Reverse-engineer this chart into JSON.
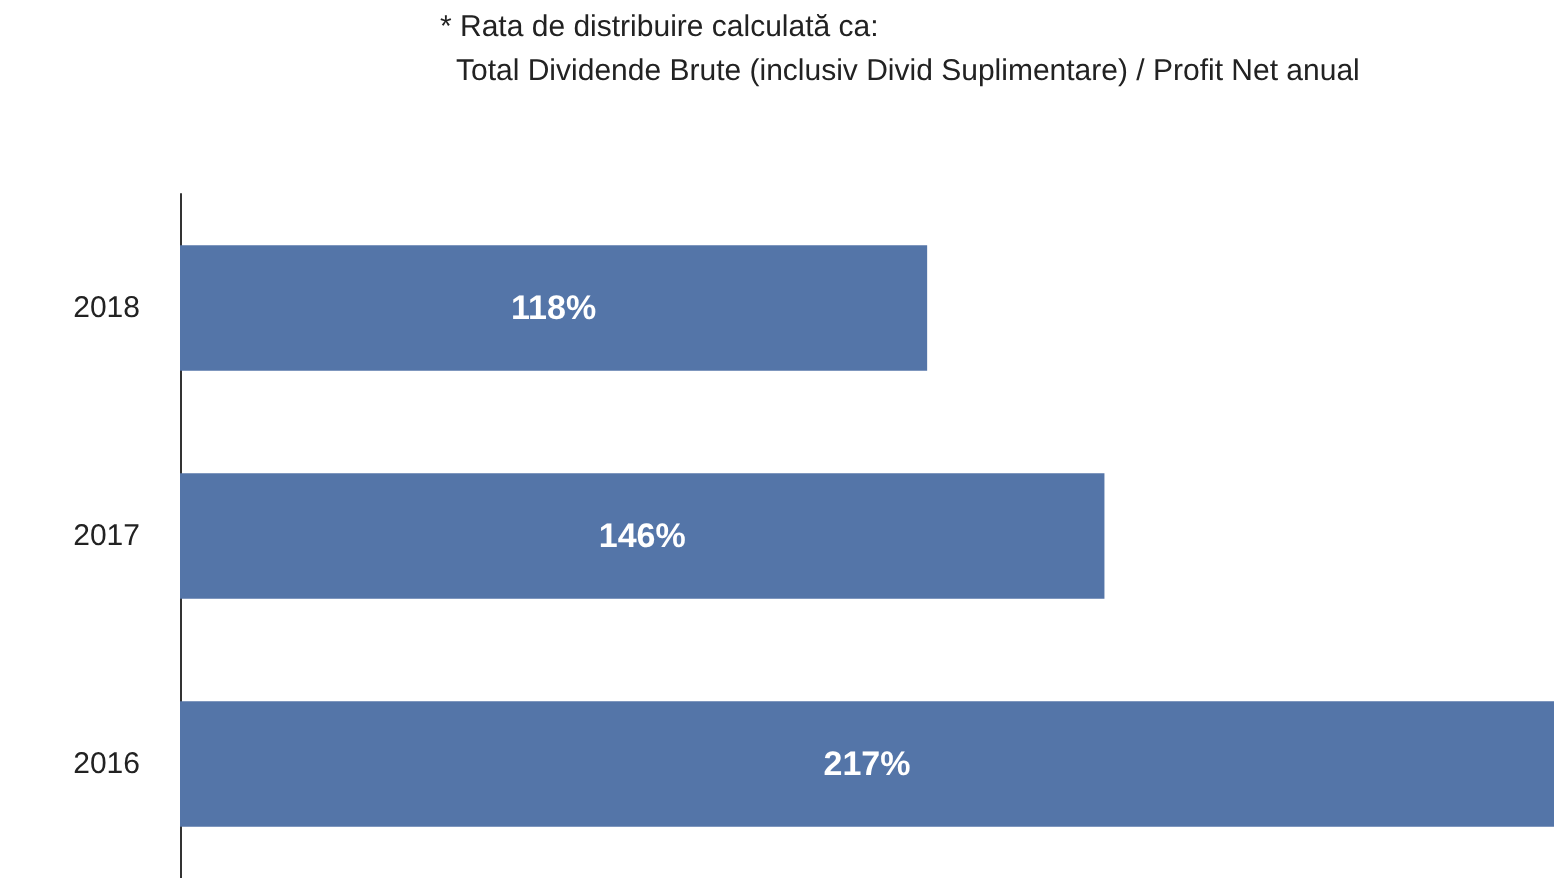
{
  "chart_data": {
    "type": "bar",
    "orientation": "horizontal",
    "annotations": [
      "* Rata de distribuire calculată ca:",
      "Total Dividende Brute (inclusiv Divid Suplimentare) / Profit Net anual"
    ],
    "categories": [
      "2018",
      "2017",
      "2016"
    ],
    "values": [
      118,
      146,
      217
    ],
    "value_labels": [
      "118%",
      "146%",
      "217%"
    ],
    "color": "#5475a8",
    "tick_labels": "y"
  }
}
